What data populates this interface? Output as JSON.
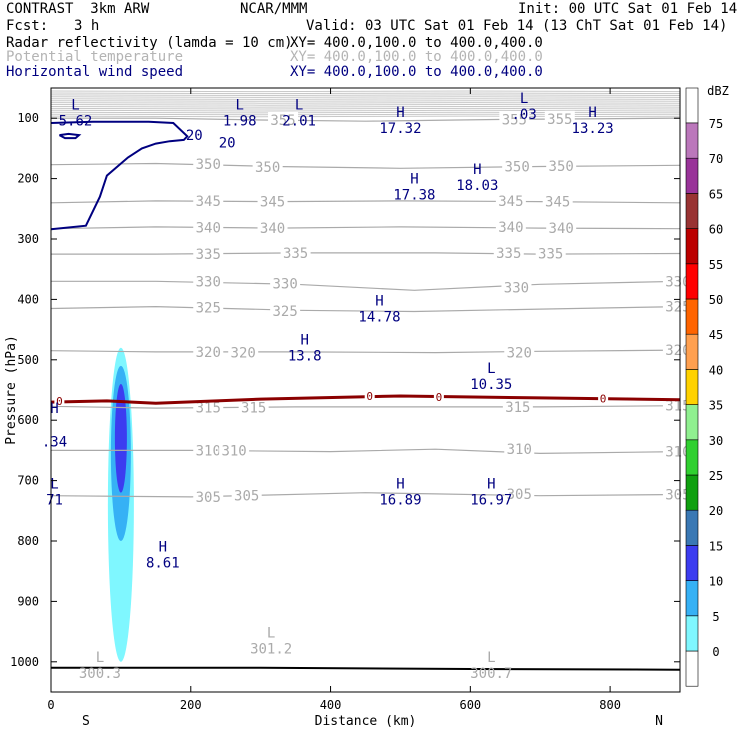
{
  "header": {
    "model": "CONTRAST  3km ARW",
    "center": "NCAR/MMM",
    "init": "Init: 00 UTC Sat 01 Feb 14",
    "fcst_label": "Fcst:",
    "fcst_value": "3 h",
    "valid": "Valid: 03 UTC Sat 01 Feb 14 (13 ChT Sat 01 Feb 14)"
  },
  "fields": [
    {
      "name": "Radar reflectivity (lamda = 10 cm)",
      "xy": "XY= 400.0,100.0 to 400.0,400.0",
      "color": "#000000"
    },
    {
      "name": "Potential temperature",
      "xy": "XY= 400.0,100.0 to 400.0,400.0",
      "color": "#b4b4b4"
    },
    {
      "name": "Horizontal wind speed",
      "xy": "XY= 400.0,100.0 to 400.0,400.0",
      "color": "#000080"
    }
  ],
  "chart_data": {
    "type": "cross-section",
    "xlabel": "Distance (km)",
    "ylabel": "Pressure (hPa)",
    "xlim": [
      0,
      900
    ],
    "ylim": [
      1050,
      50
    ],
    "x_ticks": [
      0,
      200,
      400,
      600,
      800
    ],
    "y_ticks": [
      100,
      200,
      300,
      400,
      500,
      600,
      700,
      800,
      900,
      1000
    ],
    "x_left_label": "S",
    "x_right_label": "N",
    "theta_isentropes": [
      {
        "label": "355",
        "points": [
          [
            0,
            100
          ],
          [
            150,
            100
          ],
          [
            300,
            103
          ],
          [
            450,
            105
          ],
          [
            650,
            102
          ],
          [
            900,
            100
          ]
        ],
        "label_pos": [
          [
            332,
            103
          ],
          [
            663,
            102
          ],
          [
            728,
            101
          ]
        ]
      },
      {
        "label": "350",
        "points": [
          [
            0,
            177
          ],
          [
            150,
            175
          ],
          [
            320,
            180
          ],
          [
            500,
            183
          ],
          [
            700,
            180
          ],
          [
            900,
            178
          ]
        ],
        "label_pos": [
          [
            225,
            176
          ],
          [
            310,
            181
          ],
          [
            667,
            180
          ],
          [
            730,
            179
          ]
        ]
      },
      {
        "label": "345",
        "points": [
          [
            0,
            240
          ],
          [
            150,
            237
          ],
          [
            320,
            238
          ],
          [
            500,
            237
          ],
          [
            700,
            238
          ],
          [
            900,
            240
          ]
        ],
        "label_pos": [
          [
            225,
            237
          ],
          [
            317,
            238
          ],
          [
            658,
            237
          ],
          [
            725,
            238
          ]
        ]
      },
      {
        "label": "340",
        "points": [
          [
            0,
            283
          ],
          [
            150,
            280
          ],
          [
            320,
            282
          ],
          [
            500,
            280
          ],
          [
            700,
            282
          ],
          [
            900,
            283
          ]
        ],
        "label_pos": [
          [
            225,
            281
          ],
          [
            317,
            282
          ],
          [
            658,
            280
          ],
          [
            730,
            282
          ]
        ]
      },
      {
        "label": "335",
        "points": [
          [
            0,
            325
          ],
          [
            150,
            325
          ],
          [
            350,
            323
          ],
          [
            550,
            323
          ],
          [
            700,
            325
          ],
          [
            900,
            324
          ]
        ],
        "label_pos": [
          [
            225,
            325
          ],
          [
            350,
            323
          ],
          [
            655,
            323
          ],
          [
            715,
            324
          ]
        ]
      },
      {
        "label": "330",
        "points": [
          [
            0,
            370
          ],
          [
            150,
            370
          ],
          [
            350,
            375
          ],
          [
            520,
            385
          ],
          [
            700,
            375
          ],
          [
            900,
            370
          ]
        ],
        "label_pos": [
          [
            225,
            370
          ],
          [
            335,
            374
          ],
          [
            666,
            380
          ],
          [
            897,
            370
          ]
        ]
      },
      {
        "label": "325",
        "points": [
          [
            0,
            415
          ],
          [
            150,
            412
          ],
          [
            350,
            418
          ],
          [
            520,
            420
          ],
          [
            700,
            416
          ],
          [
            900,
            412
          ]
        ],
        "label_pos": [
          [
            225,
            413
          ],
          [
            335,
            419
          ],
          [
            897,
            412
          ]
        ]
      },
      {
        "label": "320",
        "points": [
          [
            0,
            485
          ],
          [
            150,
            487
          ],
          [
            350,
            487
          ],
          [
            550,
            488
          ],
          [
            700,
            486
          ],
          [
            900,
            484
          ]
        ],
        "label_pos": [
          [
            225,
            487
          ],
          [
            275,
            488
          ],
          [
            670,
            488
          ],
          [
            897,
            484
          ]
        ]
      },
      {
        "label": "315",
        "points": [
          [
            0,
            577
          ],
          [
            150,
            580
          ],
          [
            350,
            578
          ],
          [
            550,
            578
          ],
          [
            700,
            578
          ],
          [
            900,
            576
          ]
        ],
        "label_pos": [
          [
            225,
            579
          ],
          [
            290,
            579
          ],
          [
            668,
            578
          ],
          [
            897,
            576
          ]
        ]
      },
      {
        "label": "310",
        "points": [
          [
            0,
            650
          ],
          [
            200,
            650
          ],
          [
            400,
            652
          ],
          [
            550,
            648
          ],
          [
            700,
            655
          ],
          [
            900,
            652
          ]
        ],
        "label_pos": [
          [
            225,
            650
          ],
          [
            262,
            650
          ],
          [
            670,
            648
          ],
          [
            897,
            652
          ]
        ]
      },
      {
        "label": "305",
        "points": [
          [
            0,
            725
          ],
          [
            200,
            727
          ],
          [
            450,
            720
          ],
          [
            550,
            722
          ],
          [
            700,
            725
          ],
          [
            900,
            723
          ]
        ],
        "label_pos": [
          [
            225,
            727
          ],
          [
            280,
            725
          ],
          [
            670,
            722
          ],
          [
            897,
            723
          ]
        ]
      }
    ],
    "isotherm_zero_c": {
      "label": "0",
      "color": "#8b0000",
      "points": [
        [
          0,
          570
        ],
        [
          80,
          568
        ],
        [
          150,
          572
        ],
        [
          300,
          565
        ],
        [
          500,
          560
        ],
        [
          700,
          563
        ],
        [
          900,
          566
        ]
      ],
      "label_pos": [
        [
          12,
          568
        ],
        [
          456,
          560
        ],
        [
          555,
          562
        ],
        [
          790,
          564
        ]
      ]
    },
    "wind_speed_contour": {
      "label": "20",
      "color": "#000080"
    },
    "reflectivity_levels": [
      0,
      5,
      10,
      15,
      20,
      25,
      30,
      35,
      40,
      45,
      50,
      55,
      60,
      65,
      70,
      75
    ],
    "reflectivity_colors": [
      "#ffffff",
      "#7ff7ff",
      "#36b1f5",
      "#3c3cf0",
      "#3a78b4",
      "#10a010",
      "#30d030",
      "#90f090",
      "#ffd200",
      "#ffa050",
      "#ff6400",
      "#ff0000",
      "#bb0000",
      "#993333",
      "#993399",
      "#bb77bb"
    ],
    "colorbar_label": "dBZ",
    "annotations": [
      {
        "kind": "L",
        "value": "5.62",
        "x": 35,
        "p": 86
      },
      {
        "kind": "L",
        "value": "1.98",
        "x": 270,
        "p": 86
      },
      {
        "kind": "L",
        "value": "2.01",
        "x": 355,
        "p": 86
      },
      {
        "kind": "H",
        "value": "17.32",
        "x": 500,
        "p": 98
      },
      {
        "kind": "L",
        "value": ".03",
        "x": 677,
        "p": 75
      },
      {
        "kind": "H",
        "value": "13.23",
        "x": 775,
        "p": 98
      },
      {
        "kind": "H",
        "value": "17.38",
        "x": 520,
        "p": 208
      },
      {
        "kind": "H",
        "value": "18.03",
        "x": 610,
        "p": 192
      },
      {
        "kind": "H",
        "value": "14.78",
        "x": 470,
        "p": 410
      },
      {
        "kind": "H",
        "value": "13.8",
        "x": 363,
        "p": 475
      },
      {
        "kind": "L",
        "value": "10.35",
        "x": 630,
        "p": 522
      },
      {
        "kind": "H",
        "value": "",
        "x": 5,
        "p": 588
      },
      {
        "kind": "",
        "value": ".34",
        "x": 5,
        "p": 617
      },
      {
        "kind": "L",
        "value": "71",
        "x": 5,
        "p": 713
      },
      {
        "kind": "H",
        "value": "16.89",
        "x": 500,
        "p": 713
      },
      {
        "kind": "H",
        "value": "16.97",
        "x": 630,
        "p": 713
      },
      {
        "kind": "H",
        "value": "8.61",
        "x": 160,
        "p": 817
      },
      {
        "kind": "L",
        "value": "301.2",
        "x": 315,
        "p": 960
      },
      {
        "kind": "L",
        "value": "300.3",
        "x": 70,
        "p": 1000
      },
      {
        "kind": "L",
        "value": "300.7",
        "x": 630,
        "p": 1000
      }
    ]
  }
}
